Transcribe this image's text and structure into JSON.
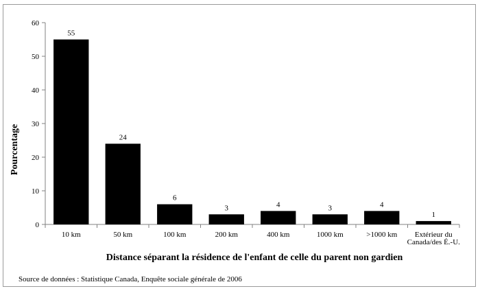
{
  "chart_data": {
    "type": "bar",
    "title": "",
    "xlabel": "Distance séparant la résidence de l'enfant de celle du parent non gardien",
    "ylabel": "Pourcentage",
    "categories": [
      "10 km",
      "50 km",
      "100 km",
      "200 km",
      "400 km",
      "1000 km",
      ">1000 km",
      "Extérieur du Canada/des É.-U."
    ],
    "category_lines": [
      [
        "10 km"
      ],
      [
        "50 km"
      ],
      [
        "100 km"
      ],
      [
        "200 km"
      ],
      [
        "400 km"
      ],
      [
        "1000 km"
      ],
      [
        ">1000 km"
      ],
      [
        "Extérieur du",
        "Canada/des É.-U."
      ]
    ],
    "values": [
      55,
      24,
      6,
      3,
      4,
      3,
      4,
      1
    ],
    "ylim": [
      0,
      60
    ],
    "yticks": [
      0,
      10,
      20,
      30,
      40,
      50,
      60
    ],
    "grid": false,
    "legend": "none",
    "bar_color": "#000000"
  },
  "source_note": "Source  de données : Statistique Canada, Enquête sociale générale de 2006"
}
